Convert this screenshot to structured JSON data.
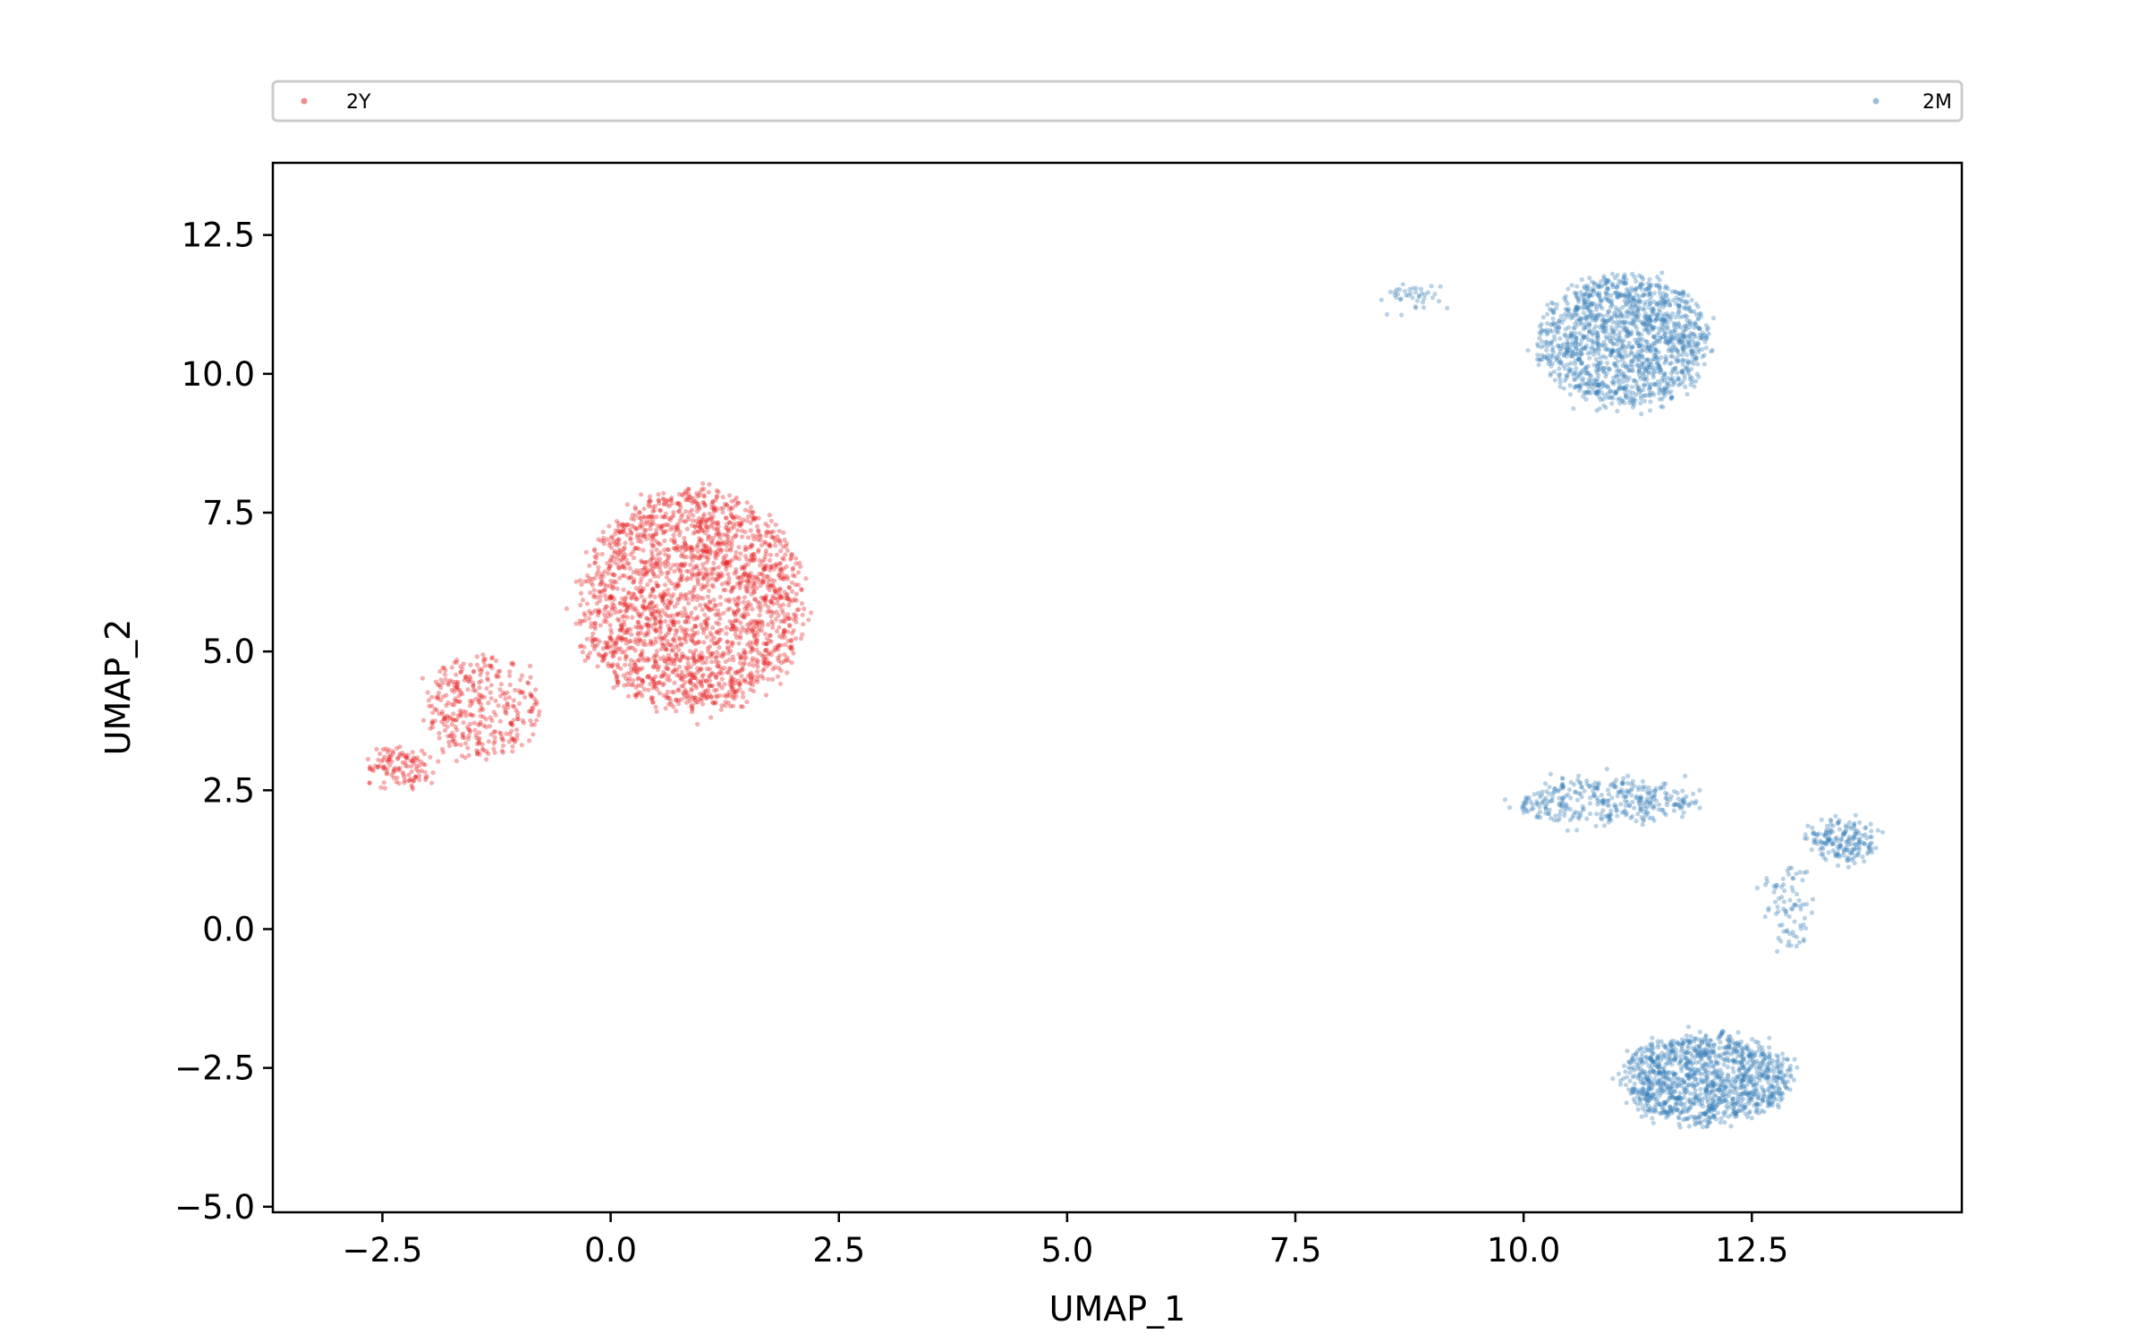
{
  "chart_data": {
    "type": "scatter",
    "xlabel": "UMAP_1",
    "ylabel": "UMAP_2",
    "xlim": [
      -3.7,
      14.8
    ],
    "ylim": [
      -5.1,
      13.8
    ],
    "xticks": [
      "−2.5",
      "0.0",
      "2.5",
      "5.0",
      "7.5",
      "10.0",
      "12.5"
    ],
    "xtick_values": [
      -2.5,
      0.0,
      2.5,
      5.0,
      7.5,
      10.0,
      12.5
    ],
    "yticks": [
      "12.5",
      "10.0",
      "7.5",
      "5.0",
      "2.5",
      "0.0",
      "−2.5",
      "−5.0"
    ],
    "ytick_values": [
      12.5,
      10.0,
      7.5,
      5.0,
      2.5,
      0.0,
      -2.5,
      -5.0
    ],
    "grid": false,
    "legend_position": "top",
    "series": [
      {
        "name": "2Y",
        "color": "#e41a1c",
        "clusters": [
          {
            "center": [
              0.9,
              5.9
            ],
            "spread": [
              1.2,
              2.0
            ],
            "count": 2200
          },
          {
            "center": [
              -1.4,
              4.0
            ],
            "spread": [
              0.6,
              0.9
            ],
            "count": 350
          },
          {
            "center": [
              -2.3,
              2.9
            ],
            "spread": [
              0.35,
              0.35
            ],
            "count": 120
          }
        ]
      },
      {
        "name": "2M",
        "color": "#377eb8",
        "clusters": [
          {
            "center": [
              11.1,
              10.6
            ],
            "spread": [
              0.9,
              1.2
            ],
            "count": 1400
          },
          {
            "center": [
              8.8,
              11.4
            ],
            "spread": [
              0.3,
              0.2
            ],
            "count": 40
          },
          {
            "center": [
              10.9,
              2.3
            ],
            "spread": [
              1.0,
              0.4
            ],
            "count": 350
          },
          {
            "center": [
              13.5,
              1.6
            ],
            "spread": [
              0.3,
              0.4
            ],
            "count": 180
          },
          {
            "center": [
              12.9,
              0.4
            ],
            "spread": [
              0.15,
              0.8
            ],
            "count": 80
          },
          {
            "center": [
              12.0,
              -2.7
            ],
            "spread": [
              0.9,
              0.8
            ],
            "count": 1200
          }
        ]
      }
    ]
  }
}
